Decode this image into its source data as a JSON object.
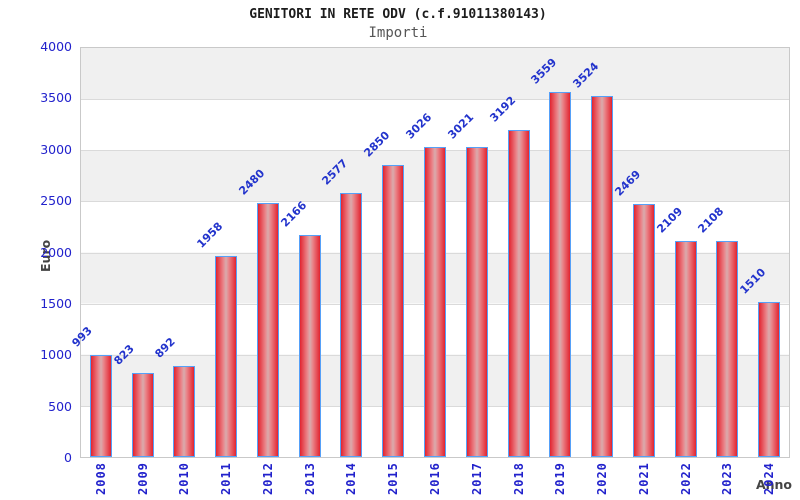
{
  "header": {
    "title": "GENITORI IN RETE ODV (c.f.91011380143)",
    "subtitle": "Importi"
  },
  "chart_data": {
    "type": "bar",
    "title": "GENITORI IN RETE ODV (c.f.91011380143)",
    "subtitle": "Importi",
    "xlabel": "Anno",
    "ylabel": "Euro",
    "categories": [
      "2008",
      "2009",
      "2010",
      "2011",
      "2012",
      "2013",
      "2014",
      "2015",
      "2016",
      "2017",
      "2018",
      "2019",
      "2020",
      "2021",
      "2022",
      "2023",
      "2024"
    ],
    "values": [
      993,
      823,
      892,
      1958,
      2480,
      2166,
      2577,
      2850,
      3026,
      3021,
      3192,
      3559,
      3524,
      2469,
      2109,
      2108,
      1510
    ],
    "yticks": [
      "4000",
      "3500",
      "3000",
      "2500",
      "2000",
      "1500",
      "1000",
      "500",
      "0"
    ],
    "ylim": [
      0,
      4000
    ],
    "grid": true,
    "legend_position": "none",
    "colors": {
      "bar_fill": "#e22430",
      "bar_fill_light": "#d9abad",
      "bar_border": "#55a0f8",
      "tick_text": "#2222cc",
      "value_text": "#2233cc",
      "band_gray": "#f0f0f0",
      "band_white": "#ffffff",
      "axis_label_text": "#444444",
      "title_text": "#1c1c1c",
      "subtitle_text": "#555555"
    }
  }
}
